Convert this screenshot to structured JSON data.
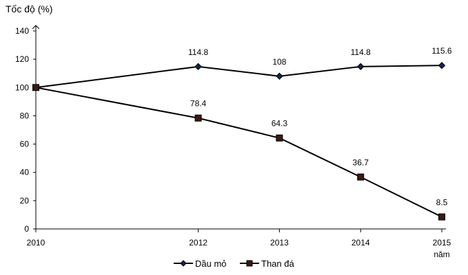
{
  "chart_data": {
    "type": "line",
    "ylabel": "Tốc độ (%)",
    "xlabel": "năm",
    "x": [
      2010,
      2012,
      2013,
      2014,
      2015
    ],
    "x_tick_labels": [
      "2010",
      "2012",
      "2013",
      "2014",
      "2015"
    ],
    "y_ticks": [
      0,
      20,
      40,
      60,
      80,
      100,
      120,
      140
    ],
    "ylim": [
      0,
      140
    ],
    "grid": false,
    "legend_position": "bottom",
    "series": [
      {
        "name": "Dầu mỏ",
        "marker": "diamond",
        "values": [
          100,
          114.8,
          108,
          114.8,
          115.6
        ],
        "labels": [
          "",
          "114.8",
          "108",
          "114.8",
          "115.6"
        ]
      },
      {
        "name": "Than đá",
        "marker": "square",
        "values": [
          100,
          78.4,
          64.3,
          36.7,
          8.5
        ],
        "labels": [
          "",
          "78.4",
          "64.3",
          "36.7",
          "8.5"
        ]
      }
    ]
  }
}
